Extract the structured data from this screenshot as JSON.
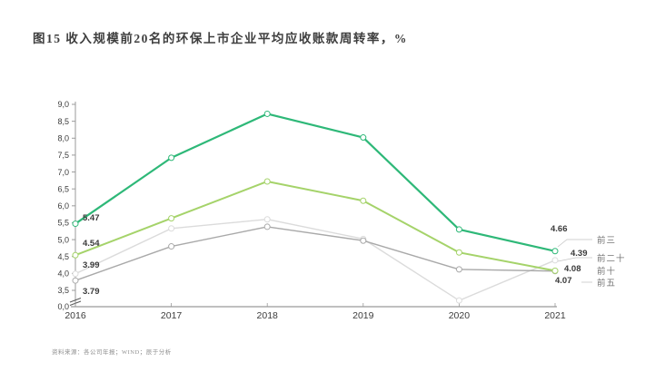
{
  "chart_data": {
    "type": "line",
    "title": "图15  收入规模前20名的环保上市企业平均应收账款周转率，%",
    "xlabel": "",
    "ylabel": "",
    "x": [
      "2016",
      "2017",
      "2018",
      "2019",
      "2020",
      "2021"
    ],
    "series": [
      {
        "name": "前三",
        "slug": "top-3",
        "color": "#2EB878",
        "values": [
          5.47,
          7.42,
          8.72,
          8.02,
          5.3,
          4.66
        ],
        "first_label": "5.47",
        "last_label": "4.66"
      },
      {
        "name": "前十",
        "slug": "top-10",
        "color": "#A5D36A",
        "values": [
          4.54,
          5.63,
          6.72,
          6.15,
          4.62,
          4.08
        ],
        "first_label": "4.54",
        "last_label": "4.08"
      },
      {
        "name": "前二十",
        "slug": "top-20",
        "color": "#DBDBDB",
        "values": [
          3.99,
          5.33,
          5.6,
          5.02,
          3.2,
          4.39
        ],
        "first_label": "3.99",
        "last_label": "4.39"
      },
      {
        "name": "前五",
        "slug": "top-5",
        "color": "#A9A9A9",
        "values": [
          3.79,
          4.8,
          5.38,
          4.97,
          4.12,
          4.07
        ],
        "first_label": "3.79",
        "last_label": "4.07"
      }
    ],
    "yticks": [
      {
        "label": "9,0",
        "v": 9.0
      },
      {
        "label": "8,5",
        "v": 8.5
      },
      {
        "label": "8,0",
        "v": 8.0
      },
      {
        "label": "7,5",
        "v": 7.5
      },
      {
        "label": "7,0",
        "v": 7.0
      },
      {
        "label": "6,5",
        "v": 6.5
      },
      {
        "label": "6,0",
        "v": 6.0
      },
      {
        "label": "5,5",
        "v": 5.5
      },
      {
        "label": "5,0",
        "v": 5.0
      },
      {
        "label": "4,5",
        "v": 4.5
      },
      {
        "label": "4,0",
        "v": 4.0
      },
      {
        "label": "3,5",
        "v": 3.5
      },
      {
        "label": "0,0",
        "v": 0.0
      }
    ],
    "ylim": [
      3.5,
      9.0
    ],
    "axis_break": true,
    "grid": false,
    "legend_position": "right",
    "legend_order": [
      "top-3",
      "top-20",
      "top-10",
      "top-5"
    ],
    "marker": "circle-white-fill"
  },
  "colors": {
    "axis": "#9a9a9a",
    "tick_text": "#3c3c3c",
    "data_label": "#3a3a3a",
    "legend_text": "#757575",
    "leader_line": "#c4c4c4"
  },
  "source_note": "资料来源：各公司年报；WIND；辰于分析"
}
